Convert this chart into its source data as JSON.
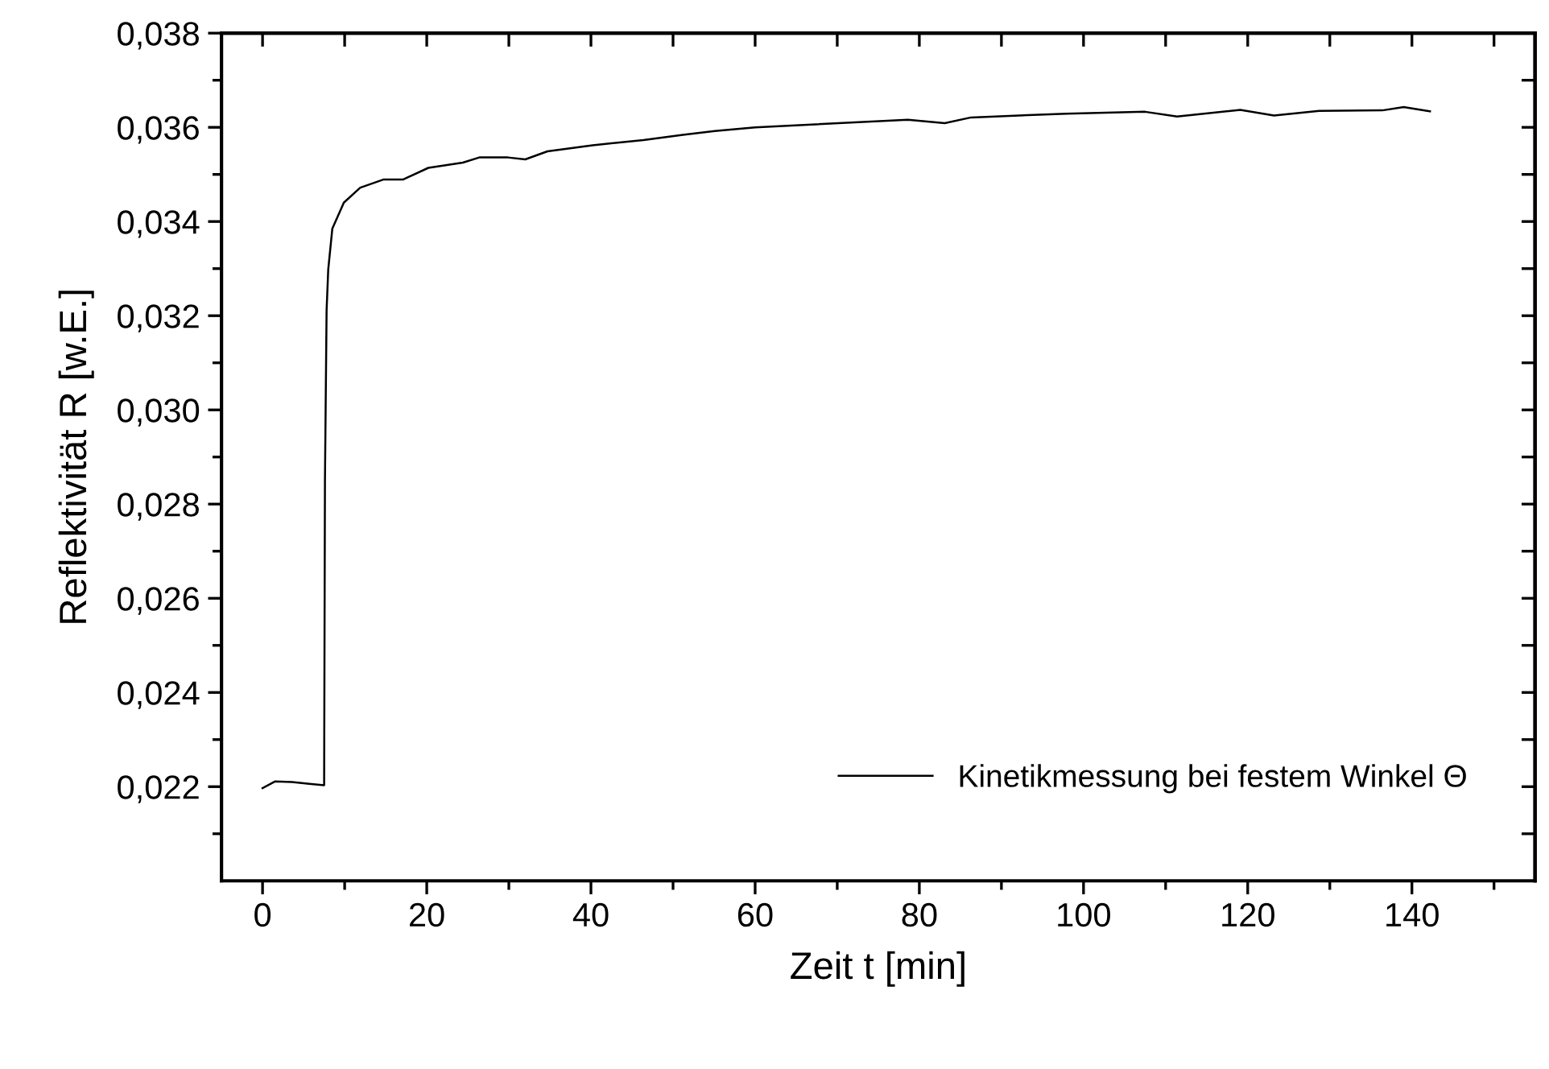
{
  "chart_data": {
    "type": "line",
    "xlabel": "Zeit t [min]",
    "ylabel": "Reflektivität R [w.E.]",
    "xlim": [
      -5,
      155
    ],
    "ylim": [
      0.02,
      0.038
    ],
    "xticks": [
      0,
      {
        "value": 10,
        "label": null
      },
      20,
      {
        "value": 30,
        "label": null
      },
      40,
      {
        "value": 50,
        "label": null
      },
      60,
      {
        "value": 70,
        "label": null
      },
      80,
      {
        "value": 90,
        "label": null
      },
      100,
      {
        "value": 110,
        "label": null
      },
      120,
      {
        "value": 130,
        "label": null
      },
      140,
      {
        "value": 150,
        "label": null
      }
    ],
    "yticks": [
      {
        "value": 0.021,
        "label": null
      },
      {
        "value": 0.022,
        "label": "0,022"
      },
      {
        "value": 0.023,
        "label": null
      },
      {
        "value": 0.024,
        "label": "0,024"
      },
      {
        "value": 0.025,
        "label": null
      },
      {
        "value": 0.026,
        "label": "0,026"
      },
      {
        "value": 0.027,
        "label": null
      },
      {
        "value": 0.028,
        "label": "0,028"
      },
      {
        "value": 0.029,
        "label": null
      },
      {
        "value": 0.03,
        "label": "0,030"
      },
      {
        "value": 0.031,
        "label": null
      },
      {
        "value": 0.032,
        "label": "0,032"
      },
      {
        "value": 0.033,
        "label": null
      },
      {
        "value": 0.034,
        "label": "0,034"
      },
      {
        "value": 0.035,
        "label": null
      },
      {
        "value": 0.036,
        "label": "0,036"
      },
      {
        "value": 0.037,
        "label": null
      },
      {
        "value": 0.038,
        "label": "0,038"
      }
    ],
    "grid": false,
    "legend": "bottom right",
    "marker": "none",
    "line_style": "solid",
    "series": [
      {
        "name": "Kinetikmessung bei festem Winkel Θ",
        "color": "#000000",
        "x": [
          0,
          1.5,
          3.6,
          5.7,
          7.5,
          7.6,
          7.8,
          8.0,
          8.5,
          9.9,
          11.9,
          14.7,
          17.1,
          20.2,
          24.4,
          26.4,
          29.9,
          32.0,
          34.7,
          40.2,
          46.4,
          51.2,
          55.1,
          60.0,
          78.6,
          83.1,
          86.3,
          97.9,
          107.5,
          111.4,
          119.1,
          123.2,
          128.7,
          136.4,
          139.0,
          142.2
        ],
        "values": [
          0.02197,
          0.02211,
          0.0221,
          0.02206,
          0.02203,
          0.0285,
          0.03211,
          0.03298,
          0.03385,
          0.0344,
          0.03472,
          0.03489,
          0.03489,
          0.03514,
          0.03525,
          0.03536,
          0.03536,
          0.03532,
          0.03549,
          0.03562,
          0.03573,
          0.03584,
          0.03592,
          0.036,
          0.03616,
          0.03609,
          0.03621,
          0.03629,
          0.03633,
          0.03623,
          0.03637,
          0.03625,
          0.03635,
          0.03636,
          0.03643,
          0.03634
        ]
      }
    ]
  }
}
